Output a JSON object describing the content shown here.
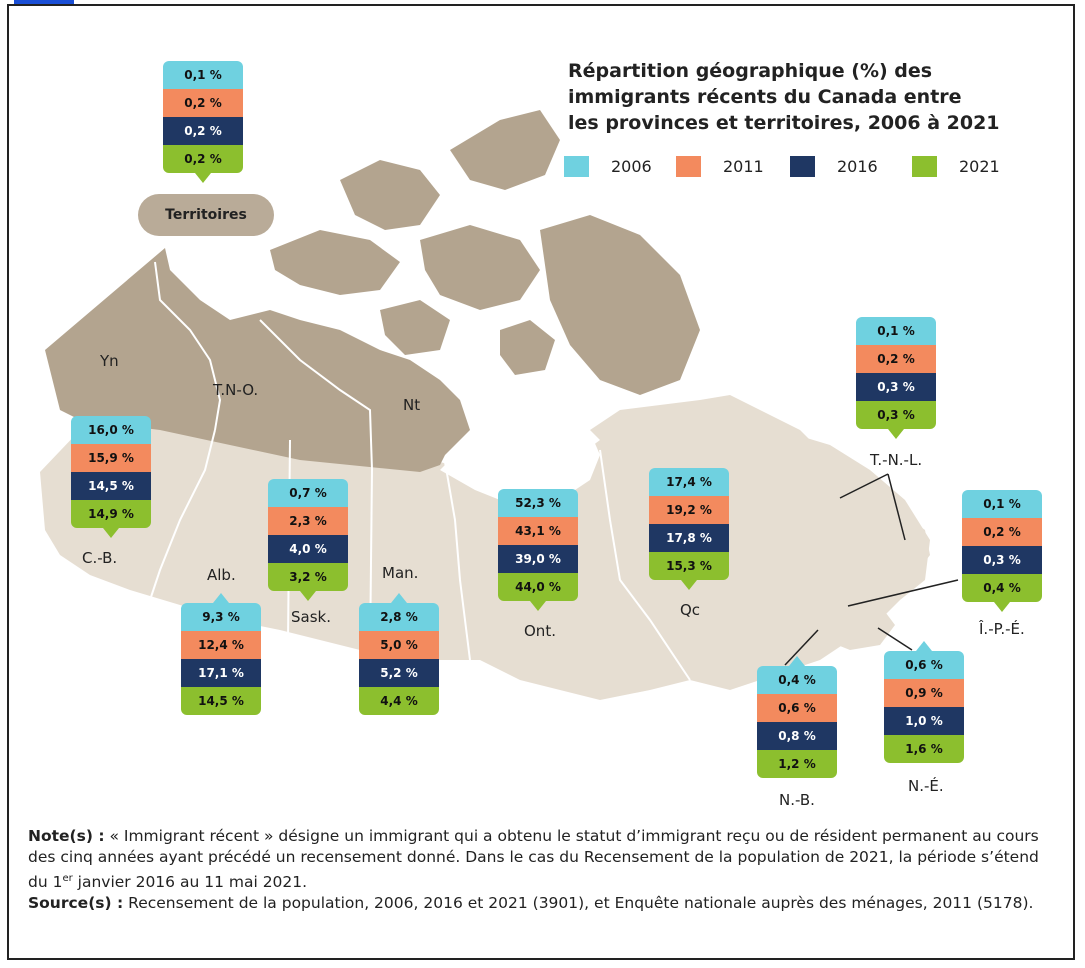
{
  "title_lines": [
    "Répartition géographique (%) des",
    "immigrants récents du Canada entre",
    "les provinces et territoires, 2006 à 2021"
  ],
  "legend": [
    {
      "label": "2006",
      "color": "#6fd1e0"
    },
    {
      "label": "2011",
      "color": "#f38a5e"
    },
    {
      "label": "2016",
      "color": "#1f3763"
    },
    {
      "label": "2021",
      "color": "#8cbf2e"
    }
  ],
  "map": {
    "land_color": "#e6ded2",
    "north_color": "#b3a48f",
    "border_color": "#ffffff"
  },
  "regions": {
    "territoires": {
      "label": "Territoires",
      "values": [
        "0,1 %",
        "0,2 %",
        "0,2 %",
        "0,2 %"
      ]
    },
    "cb": {
      "label": "C.-B.",
      "values": [
        "16,0 %",
        "15,9 %",
        "14,5 %",
        "14,9 %"
      ]
    },
    "alb": {
      "label": "Alb.",
      "values": [
        "9,3 %",
        "12,4 %",
        "17,1 %",
        "14,5 %"
      ]
    },
    "sask": {
      "label": "Sask.",
      "values": [
        "0,7 %",
        "2,3 %",
        "4,0 %",
        "3,2 %"
      ]
    },
    "man": {
      "label": "Man.",
      "values": [
        "2,8 %",
        "5,0 %",
        "5,2 %",
        "4,4 %"
      ]
    },
    "ont": {
      "label": "Ont.",
      "values": [
        "52,3 %",
        "43,1 %",
        "39,0 %",
        "44,0 %"
      ]
    },
    "qc": {
      "label": "Qc",
      "values": [
        "17,4 %",
        "19,2 %",
        "17,8 %",
        "15,3 %"
      ]
    },
    "tnl": {
      "label": "T.-N.-L.",
      "values": [
        "0,1 %",
        "0,2 %",
        "0,3 %",
        "0,3 %"
      ]
    },
    "ipe": {
      "label": "Î.-P.-É.",
      "values": [
        "0,1 %",
        "0,2 %",
        "0,3 %",
        "0,4 %"
      ]
    },
    "nb": {
      "label": "N.-B.",
      "values": [
        "0,4 %",
        "0,6 %",
        "0,8 %",
        "1,2 %"
      ]
    },
    "ne": {
      "label": "N.-É.",
      "values": [
        "0,6 %",
        "0,9 %",
        "1,0 %",
        "1,6 %"
      ]
    }
  },
  "territory_labels": {
    "yn": "Yn",
    "tno": "T.N-O.",
    "nt": "Nt"
  },
  "notes": {
    "note_label": "Note(s) :",
    "note_text_1": "« Immigrant récent » désigne un immigrant qui a obtenu le statut d’immigrant reçu ou de résident permanent au cours des cinq années ayant précédé un recensement donné. Dans le cas du Recensement de la population de 2021, la période s’étend du 1",
    "note_sup": "er",
    "note_text_2": " janvier 2016 au 11 mai 2021.",
    "source_label": "Source(s) :",
    "source_text": "Recensement de la population, 2006, 2016 et 2021 (3901), et Enquête nationale auprès des ménages, 2011 (5178)."
  }
}
